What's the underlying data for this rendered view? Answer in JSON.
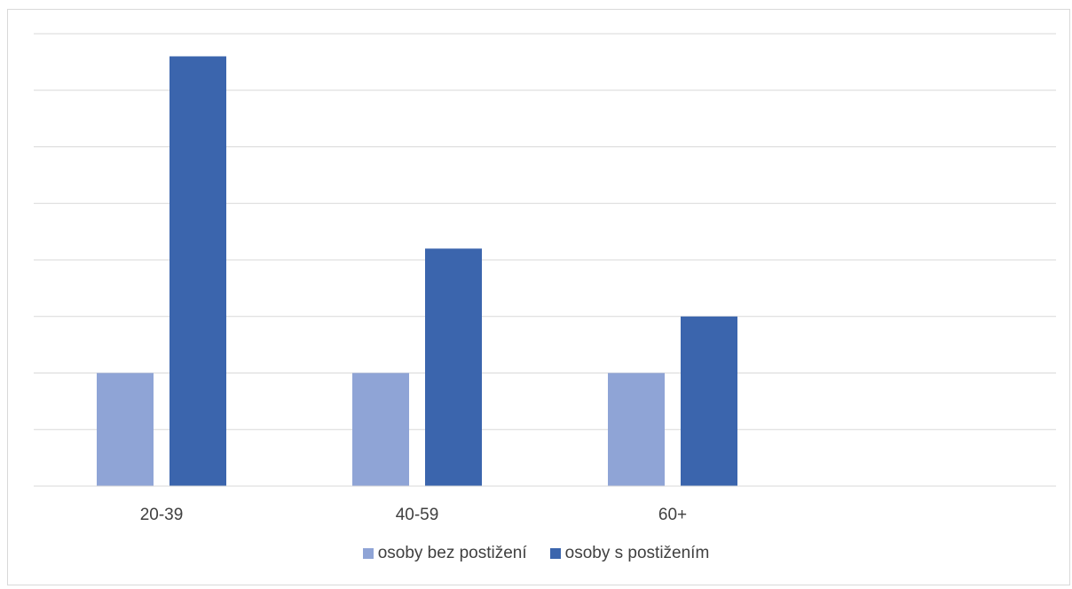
{
  "chart_data": {
    "type": "bar",
    "categories": [
      "20-39",
      "40-59",
      "60+",
      ""
    ],
    "series": [
      {
        "name": "osoby bez postižení",
        "color": "#8fa4d6",
        "values": [
          2,
          2,
          2,
          null
        ]
      },
      {
        "name": "osoby s postižením",
        "color": "#3b65ad",
        "values": [
          7.6,
          4.2,
          3.0,
          null
        ]
      }
    ],
    "title": "",
    "xlabel": "",
    "ylabel": "",
    "ylim": [
      0,
      8
    ],
    "grid": true,
    "y_tick_labels_shown": false,
    "legend_position": "bottom"
  }
}
